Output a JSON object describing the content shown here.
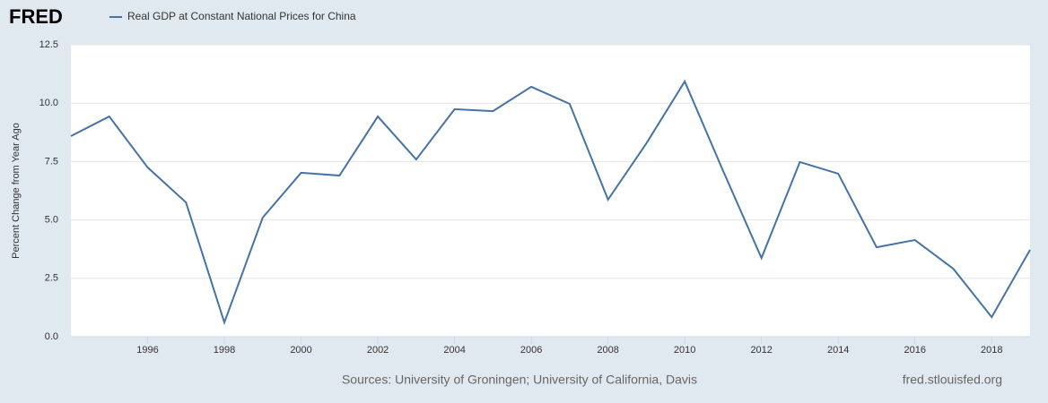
{
  "chart_data": {
    "type": "line",
    "brand": "FRED",
    "y_label": "Percent Change from Year Ago",
    "source": "Sources: University of Groningen; University of California, Davis",
    "site": "fred.stlouisfed.org",
    "x": [
      1994,
      1995,
      1996,
      1997,
      1998,
      1999,
      2000,
      2001,
      2002,
      2003,
      2004,
      2005,
      2006,
      2007,
      2008,
      2009,
      2010,
      2011,
      2012,
      2013,
      2014,
      2015,
      2016,
      2017,
      2018,
      2019
    ],
    "series": [
      {
        "name": "Real GDP at Constant National Prices for China",
        "color": "#4572a7",
        "values": [
          8.59,
          9.43,
          7.25,
          5.75,
          0.61,
          5.1,
          7.02,
          6.9,
          9.43,
          7.59,
          9.74,
          9.66,
          10.7,
          9.97,
          5.87,
          8.28,
          10.93,
          7.1,
          3.37,
          7.48,
          6.98,
          3.83,
          4.14,
          2.91,
          0.84,
          3.72
        ]
      }
    ],
    "xlim": [
      1994,
      2019
    ],
    "xticks": [
      1996,
      1998,
      2000,
      2002,
      2004,
      2006,
      2008,
      2010,
      2012,
      2014,
      2016,
      2018
    ],
    "ylim": [
      0,
      12.5
    ],
    "yticks": [
      {
        "value": 0,
        "label": "0.0"
      },
      {
        "value": 2.5,
        "label": "2.5"
      },
      {
        "value": 5,
        "label": "5.0"
      },
      {
        "value": 7.5,
        "label": "7.5"
      },
      {
        "value": 10,
        "label": "10.0"
      },
      {
        "value": 12.5,
        "label": "12.5"
      }
    ],
    "grid": true
  }
}
